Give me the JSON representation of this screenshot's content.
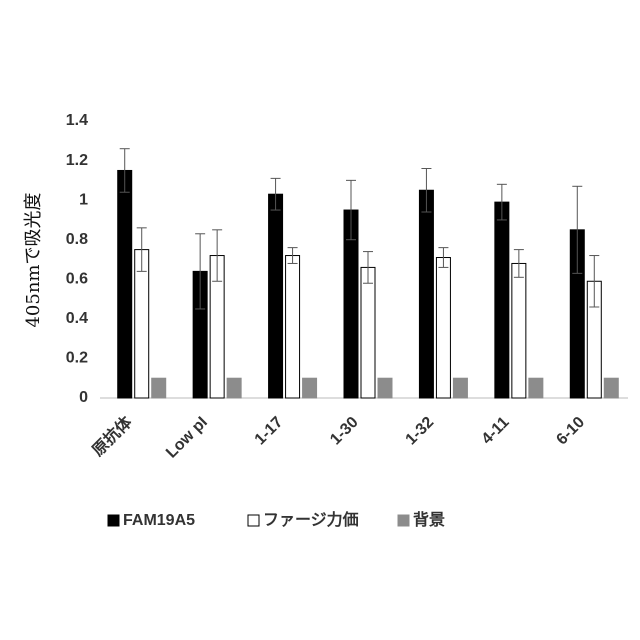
{
  "chart_data": {
    "type": "bar",
    "y_label": "405nmで吸光度",
    "categories": [
      "原抗体",
      "Low pI",
      "1-17",
      "1-30",
      "1-32",
      "4-11",
      "6-10"
    ],
    "series": [
      {
        "name": "FAM19A5",
        "color": "#000000",
        "values": [
          1.15,
          0.64,
          1.03,
          0.95,
          1.05,
          0.99,
          0.85
        ],
        "errors": [
          0.11,
          0.19,
          0.08,
          0.15,
          0.11,
          0.09,
          0.22
        ]
      },
      {
        "name": "ファージ力価",
        "color": "#ffffff",
        "values": [
          0.75,
          0.72,
          0.72,
          0.66,
          0.71,
          0.68,
          0.59
        ],
        "errors": [
          0.11,
          0.13,
          0.04,
          0.08,
          0.05,
          0.07,
          0.13
        ]
      },
      {
        "name": "背景",
        "color": "#8c8c8c",
        "values": [
          0.1,
          0.1,
          0.1,
          0.1,
          0.1,
          0.1,
          0.1
        ]
      }
    ],
    "ylim": [
      0,
      1.4
    ],
    "yticks": [
      0,
      0.2,
      0.4,
      0.6,
      0.8,
      1,
      1.2,
      1.4
    ]
  }
}
